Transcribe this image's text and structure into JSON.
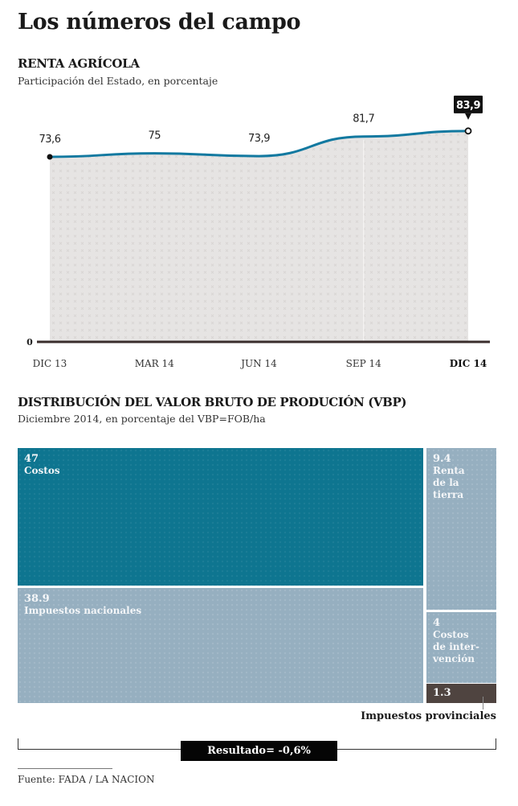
{
  "header": {
    "title": "Los números del campo"
  },
  "chart_data": [
    {
      "type": "area",
      "title": "RENTA AGRÍCOLA",
      "subtitle": "Participación del Estado, en porcentaje",
      "categories": [
        "DIC 13",
        "MAR 14",
        "JUN 14",
        "SEP 14",
        "DIC 14"
      ],
      "values": [
        73.6,
        75,
        73.9,
        81.7,
        83.9
      ],
      "data_labels": [
        "73,6",
        "75",
        "73,9",
        "81,7",
        "83,9"
      ],
      "highlight_index": 4,
      "y_tick_labels": [
        "0"
      ],
      "ylim": [
        0,
        100
      ],
      "xlabel": "",
      "ylabel": "",
      "colors": {
        "line": "#1279a0",
        "fill": "#e6e4e3",
        "baseline": "#3a2e2c",
        "highlight_box": "#111111"
      }
    },
    {
      "type": "treemap",
      "title": "DISTRIBUCIÓN DEL VALOR BRUTO DE PRODUCIÓN (VBP)",
      "subtitle": "Diciembre 2014, en porcentaje del VBP=FOB/ha",
      "items": [
        {
          "label": "Costos",
          "value": 47,
          "value_label": "47",
          "color": "#0e7590"
        },
        {
          "label": "Impuestos nacionales",
          "value": 38.9,
          "value_label": "38.9",
          "color": "#96afc0"
        },
        {
          "label": "Renta de la tierra",
          "value": 9.4,
          "value_label": "9.4",
          "label_lines": [
            "Renta",
            "de la",
            "tierra"
          ],
          "color": "#96afc0"
        },
        {
          "label": "Costos de intervención",
          "value": 4,
          "value_label": "4",
          "label_lines": [
            "Costos",
            "de inter-",
            "vención"
          ],
          "color": "#96afc0"
        },
        {
          "label": "Impuestos provinciales",
          "value": 1.3,
          "value_label": "1.3",
          "color": "#4f4440"
        }
      ],
      "result": "Resultado= -0,6%"
    }
  ],
  "footer": {
    "source": "Fuente: FADA / LA NACION"
  }
}
